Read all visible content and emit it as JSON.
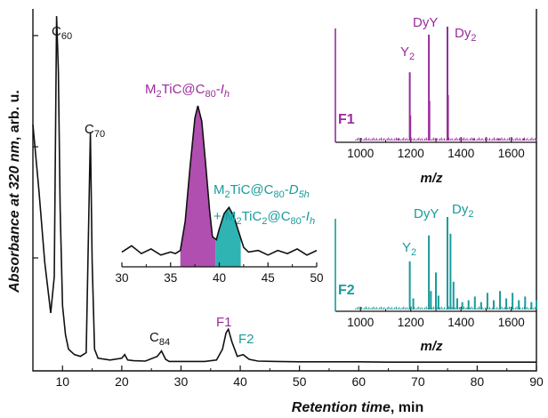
{
  "chart_data": [
    {
      "type": "line",
      "xlabel": "Retention time",
      "xlabel_unit": ", min",
      "ylabel": "Absorbance at 320 nm",
      "ylabel_unit": ", arb. u.",
      "xlim": [
        5,
        90
      ],
      "xticks": [
        "10",
        "20",
        "30",
        "40",
        "50",
        "60",
        "70",
        "80",
        "90"
      ],
      "x": [
        5,
        6,
        7,
        8,
        8.6,
        9.0,
        9.3,
        9.6,
        10.0,
        10.5,
        11.0,
        12,
        13,
        14,
        14.4,
        14.7,
        15.0,
        15.4,
        16,
        18,
        20,
        20.5,
        21,
        22,
        24,
        26,
        26.7,
        27.4,
        28,
        30,
        32,
        34,
        36,
        37,
        37.6,
        38.0,
        38.6,
        39.5,
        40.5,
        41.5,
        43,
        46,
        50,
        55,
        60,
        65,
        70,
        75,
        80,
        85,
        90
      ],
      "y": [
        0.68,
        0.5,
        0.3,
        0.16,
        0.26,
        0.98,
        0.83,
        0.45,
        0.18,
        0.1,
        0.06,
        0.045,
        0.04,
        0.05,
        0.4,
        0.66,
        0.3,
        0.06,
        0.035,
        0.03,
        0.035,
        0.045,
        0.03,
        0.028,
        0.027,
        0.04,
        0.055,
        0.032,
        0.026,
        0.026,
        0.026,
        0.026,
        0.03,
        0.06,
        0.105,
        0.115,
        0.08,
        0.04,
        0.045,
        0.032,
        0.027,
        0.026,
        0.025,
        0.025,
        0.025,
        0.024,
        0.024,
        0.024,
        0.024,
        0.024,
        0.024
      ],
      "annotations": [
        {
          "label": "C",
          "sub": "60",
          "x": 9.3
        },
        {
          "label": "C",
          "sub": "70",
          "x": 14.7
        },
        {
          "label": "C",
          "sub": "84",
          "x": 26.7
        },
        {
          "label": "F1",
          "x": 38.0
        },
        {
          "label": "F2",
          "x": 41.0
        }
      ]
    },
    {
      "type": "area",
      "xlim": [
        30,
        50
      ],
      "xticks": [
        "30",
        "35",
        "40",
        "45",
        "50"
      ],
      "x": [
        30,
        31,
        32,
        33,
        34,
        35,
        35.5,
        36,
        36.5,
        37,
        37.5,
        37.8,
        38.2,
        38.6,
        39,
        39.3,
        39.7,
        40,
        40.5,
        41,
        41.5,
        42,
        42.5,
        43,
        44,
        45,
        46,
        47,
        48,
        49,
        50
      ],
      "y": [
        0.05,
        0.09,
        0.04,
        0.07,
        0.03,
        0.05,
        0.04,
        0.06,
        0.25,
        0.6,
        0.92,
        1.0,
        0.9,
        0.62,
        0.32,
        0.15,
        0.13,
        0.2,
        0.3,
        0.34,
        0.28,
        0.18,
        0.08,
        0.05,
        0.06,
        0.03,
        0.06,
        0.04,
        0.07,
        0.03,
        0.06
      ],
      "fractions": [
        {
          "name_main": "M",
          "name_sub1": "2",
          "name_mid": "TiC@C",
          "name_sub2": "80",
          "name_end": "-",
          "name_italic": "I",
          "name_sub3": "h",
          "range": [
            36,
            39.6
          ],
          "color": "#b04fb0"
        },
        {
          "line1_main": "M",
          "line1_sub1": "2",
          "line1_mid": "TiC@C",
          "line1_sub2": "80",
          "line1_end": "-",
          "line1_italic": "D",
          "line1_sub3": "5h",
          "line2_main": "+ M",
          "line2_sub1": "2",
          "line2_mid": "TiC",
          "line2_sub2": "2",
          "line2_mid2": "@C",
          "line2_sub3": "80",
          "line2_end": "-",
          "line2_italic": "I",
          "line2_sub4": "h",
          "range": [
            39.6,
            42.2
          ],
          "color": "#2fb3b3"
        }
      ]
    },
    {
      "type": "bar",
      "panel": "F1",
      "color": "#9b2b9b",
      "xlim": [
        900,
        1700
      ],
      "xticks": [
        "1000",
        "1200",
        "1400",
        "1600"
      ],
      "xlabel": "m/z",
      "peaks": [
        [
          1196,
          0.6
        ],
        [
          1198,
          0.22
        ],
        [
          1272,
          0.93
        ],
        [
          1274,
          0.35
        ],
        [
          1346,
          1.0
        ],
        [
          1348,
          0.4
        ],
        [
          1150,
          0.02
        ],
        [
          1300,
          0.02
        ],
        [
          1400,
          0.03
        ],
        [
          1450,
          0.02
        ],
        [
          1500,
          0.03
        ],
        [
          1550,
          0.02
        ],
        [
          1600,
          0.03
        ],
        [
          1650,
          0.02
        ]
      ],
      "labels": [
        {
          "text": "Y",
          "sub": "2",
          "x": 1196
        },
        {
          "text": "DyY",
          "x": 1272
        },
        {
          "text": "Dy",
          "sub": "2",
          "x": 1346
        }
      ]
    },
    {
      "type": "bar",
      "panel": "F2",
      "color": "#1a9b9b",
      "xlim": [
        900,
        1700
      ],
      "xticks": [
        "1000",
        "1200",
        "1400",
        "1600"
      ],
      "xlabel": "m/z",
      "peaks": [
        [
          1196,
          0.52
        ],
        [
          1210,
          0.12
        ],
        [
          1272,
          0.8
        ],
        [
          1280,
          0.2
        ],
        [
          1300,
          0.4
        ],
        [
          1310,
          0.15
        ],
        [
          1346,
          1.0
        ],
        [
          1358,
          0.82
        ],
        [
          1370,
          0.3
        ],
        [
          1385,
          0.12
        ],
        [
          1405,
          0.08
        ],
        [
          1430,
          0.1
        ],
        [
          1455,
          0.14
        ],
        [
          1480,
          0.08
        ],
        [
          1505,
          0.18
        ],
        [
          1530,
          0.1
        ],
        [
          1555,
          0.2
        ],
        [
          1580,
          0.12
        ],
        [
          1605,
          0.18
        ],
        [
          1630,
          0.1
        ],
        [
          1655,
          0.14
        ],
        [
          1680,
          0.08
        ],
        [
          1700,
          0.1
        ]
      ],
      "labels": [
        {
          "text": "Y",
          "sub": "2",
          "x": 1196
        },
        {
          "text": "DyY",
          "x": 1272
        },
        {
          "text": "Dy",
          "sub": "2",
          "x": 1346
        }
      ]
    }
  ]
}
